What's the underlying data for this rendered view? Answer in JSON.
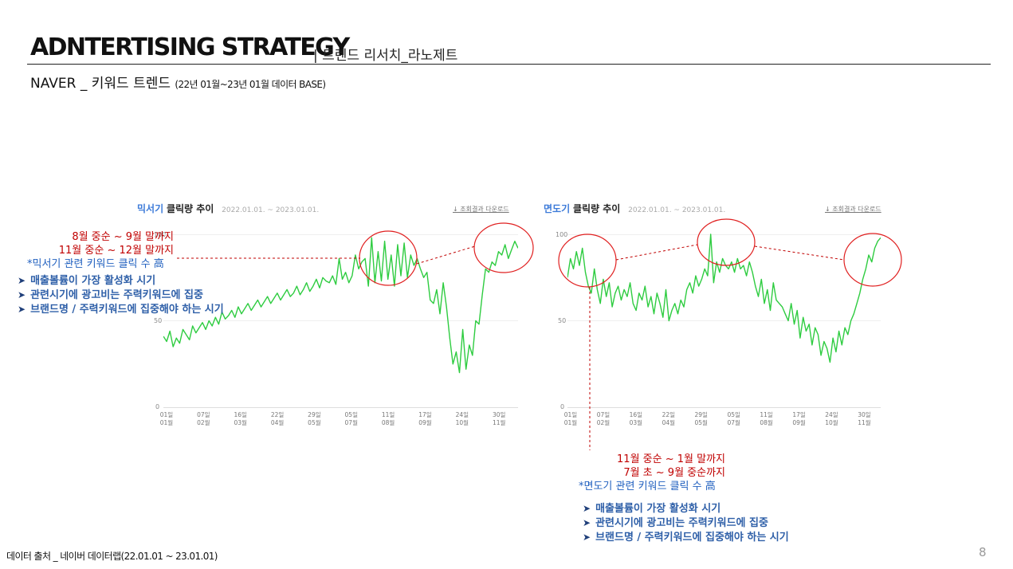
{
  "header": {
    "title": "ADNTERTISING STRATEGY",
    "subtitle": "| 트렌드 리서치_라노제트",
    "section_title": "NAVER _ 키워드 트렌드",
    "section_period": "(22년 01월~23년 01월 데이터 BASE)"
  },
  "charts": [
    {
      "keyword": "믹서기",
      "label": "클릭량 추이",
      "range": "2022.01.01. ~ 2023.01.01.",
      "download": "↓ 조회결과 다운로드",
      "y_ticks": [
        "100",
        "50",
        "0"
      ],
      "x_ticks": [
        {
          "day": "01일",
          "month": "01월"
        },
        {
          "day": "07일",
          "month": "02월"
        },
        {
          "day": "16일",
          "month": "03월"
        },
        {
          "day": "22일",
          "month": "04월"
        },
        {
          "day": "29일",
          "month": "05월"
        },
        {
          "day": "05일",
          "month": "07월"
        },
        {
          "day": "11일",
          "month": "08월"
        },
        {
          "day": "17일",
          "month": "09월"
        },
        {
          "day": "24일",
          "month": "10월"
        },
        {
          "day": "30일",
          "month": "11월"
        }
      ]
    },
    {
      "keyword": "면도기",
      "label": "클릭량 추이",
      "range": "2022.01.01. ~ 2023.01.01.",
      "download": "↓ 조회결과 다운로드",
      "y_ticks": [
        "100",
        "50",
        "0"
      ],
      "x_ticks": [
        {
          "day": "01일",
          "month": "01월"
        },
        {
          "day": "07일",
          "month": "02월"
        },
        {
          "day": "16일",
          "month": "03월"
        },
        {
          "day": "22일",
          "month": "04월"
        },
        {
          "day": "29일",
          "month": "05월"
        },
        {
          "day": "05일",
          "month": "07월"
        },
        {
          "day": "11일",
          "month": "08월"
        },
        {
          "day": "17일",
          "month": "09월"
        },
        {
          "day": "24일",
          "month": "10월"
        },
        {
          "day": "30일",
          "month": "11월"
        }
      ]
    }
  ],
  "chart_data": [
    {
      "type": "line",
      "title": "믹서기 클릭량 추이",
      "ylim": [
        0,
        100
      ],
      "line_color": "#2ecc40",
      "series": [
        {
          "values": [
            41,
            38,
            44,
            35,
            40,
            37,
            45,
            42,
            39,
            47,
            43,
            46,
            49,
            45,
            50,
            47,
            52,
            48,
            55,
            51,
            53,
            56,
            52,
            58,
            54,
            57,
            60,
            56,
            59,
            62,
            58,
            61,
            64,
            60,
            63,
            66,
            62,
            65,
            68,
            64,
            66,
            70,
            65,
            68,
            72,
            67,
            70,
            74,
            69,
            75,
            73,
            72,
            76,
            71,
            86,
            74,
            78,
            72,
            76,
            88,
            80,
            84,
            86,
            70,
            98,
            72,
            90,
            73,
            96,
            74,
            88,
            70,
            94,
            76,
            95,
            75,
            88,
            82,
            86,
            80,
            75,
            78,
            62,
            60,
            68,
            54,
            72,
            58,
            40,
            25,
            32,
            20,
            45,
            22,
            36,
            30,
            50,
            48,
            65,
            80,
            78,
            84,
            82,
            90,
            88,
            94,
            86,
            91,
            96,
            92
          ]
        }
      ],
      "color": "#2ecc40"
    },
    {
      "type": "line",
      "title": "면도기 클릭량 추이",
      "ylim": [
        0,
        100
      ],
      "line_color": "#2ecc40",
      "series": [
        {
          "values": [
            75,
            86,
            80,
            90,
            82,
            92,
            78,
            70,
            66,
            80,
            68,
            60,
            74,
            64,
            72,
            58,
            66,
            70,
            62,
            68,
            64,
            72,
            60,
            56,
            66,
            62,
            70,
            58,
            64,
            54,
            66,
            60,
            52,
            68,
            50,
            56,
            60,
            54,
            62,
            58,
            68,
            72,
            66,
            76,
            70,
            74,
            80,
            76,
            100,
            72,
            84,
            78,
            86,
            82,
            80,
            84,
            78,
            86,
            80,
            82,
            76,
            84,
            78,
            70,
            64,
            74,
            60,
            68,
            56,
            72,
            62,
            60,
            58,
            54,
            50,
            60,
            48,
            56,
            40,
            52,
            44,
            48,
            36,
            46,
            42,
            30,
            38,
            34,
            26,
            40,
            32,
            44,
            36,
            46,
            42,
            50,
            54,
            60,
            66,
            74,
            80,
            88,
            84,
            92,
            96,
            98
          ]
        }
      ],
      "color": "#2ecc40"
    }
  ],
  "annotations": {
    "left": {
      "red_lines": [
        "8월 중순 ~ 9월 말까지",
        "11월 중순 ~ 12월 말까지"
      ],
      "blue_note": "*믹서기 관련 키워드 클릭 수 高",
      "bullets": [
        "매출볼륨이 가장 활성화 시기",
        "관련시기에 광고비는 주력키워드에 집중",
        "브랜드명 / 주력키워드에 집중해야 하는 시기"
      ]
    },
    "right": {
      "red_lines": [
        "11월 중순 ~ 1월 말까지",
        "7월 초 ~ 9월 중순까지"
      ],
      "blue_note": "*면도기 관련 키워드 클릭 수 高",
      "bullets": [
        "매출볼륨이 가장 활성화 시기",
        "관련시기에 광고비는 주력키워드에 집중",
        "브랜드명 / 주력키워드에 집중해야 하는 시기"
      ]
    },
    "bullet_glyph": "➤"
  },
  "footer": {
    "source": "데이터 출처 _ 네이버 데이터랩(22.01.01 ~ 23.01.01)",
    "page_number": "8"
  }
}
